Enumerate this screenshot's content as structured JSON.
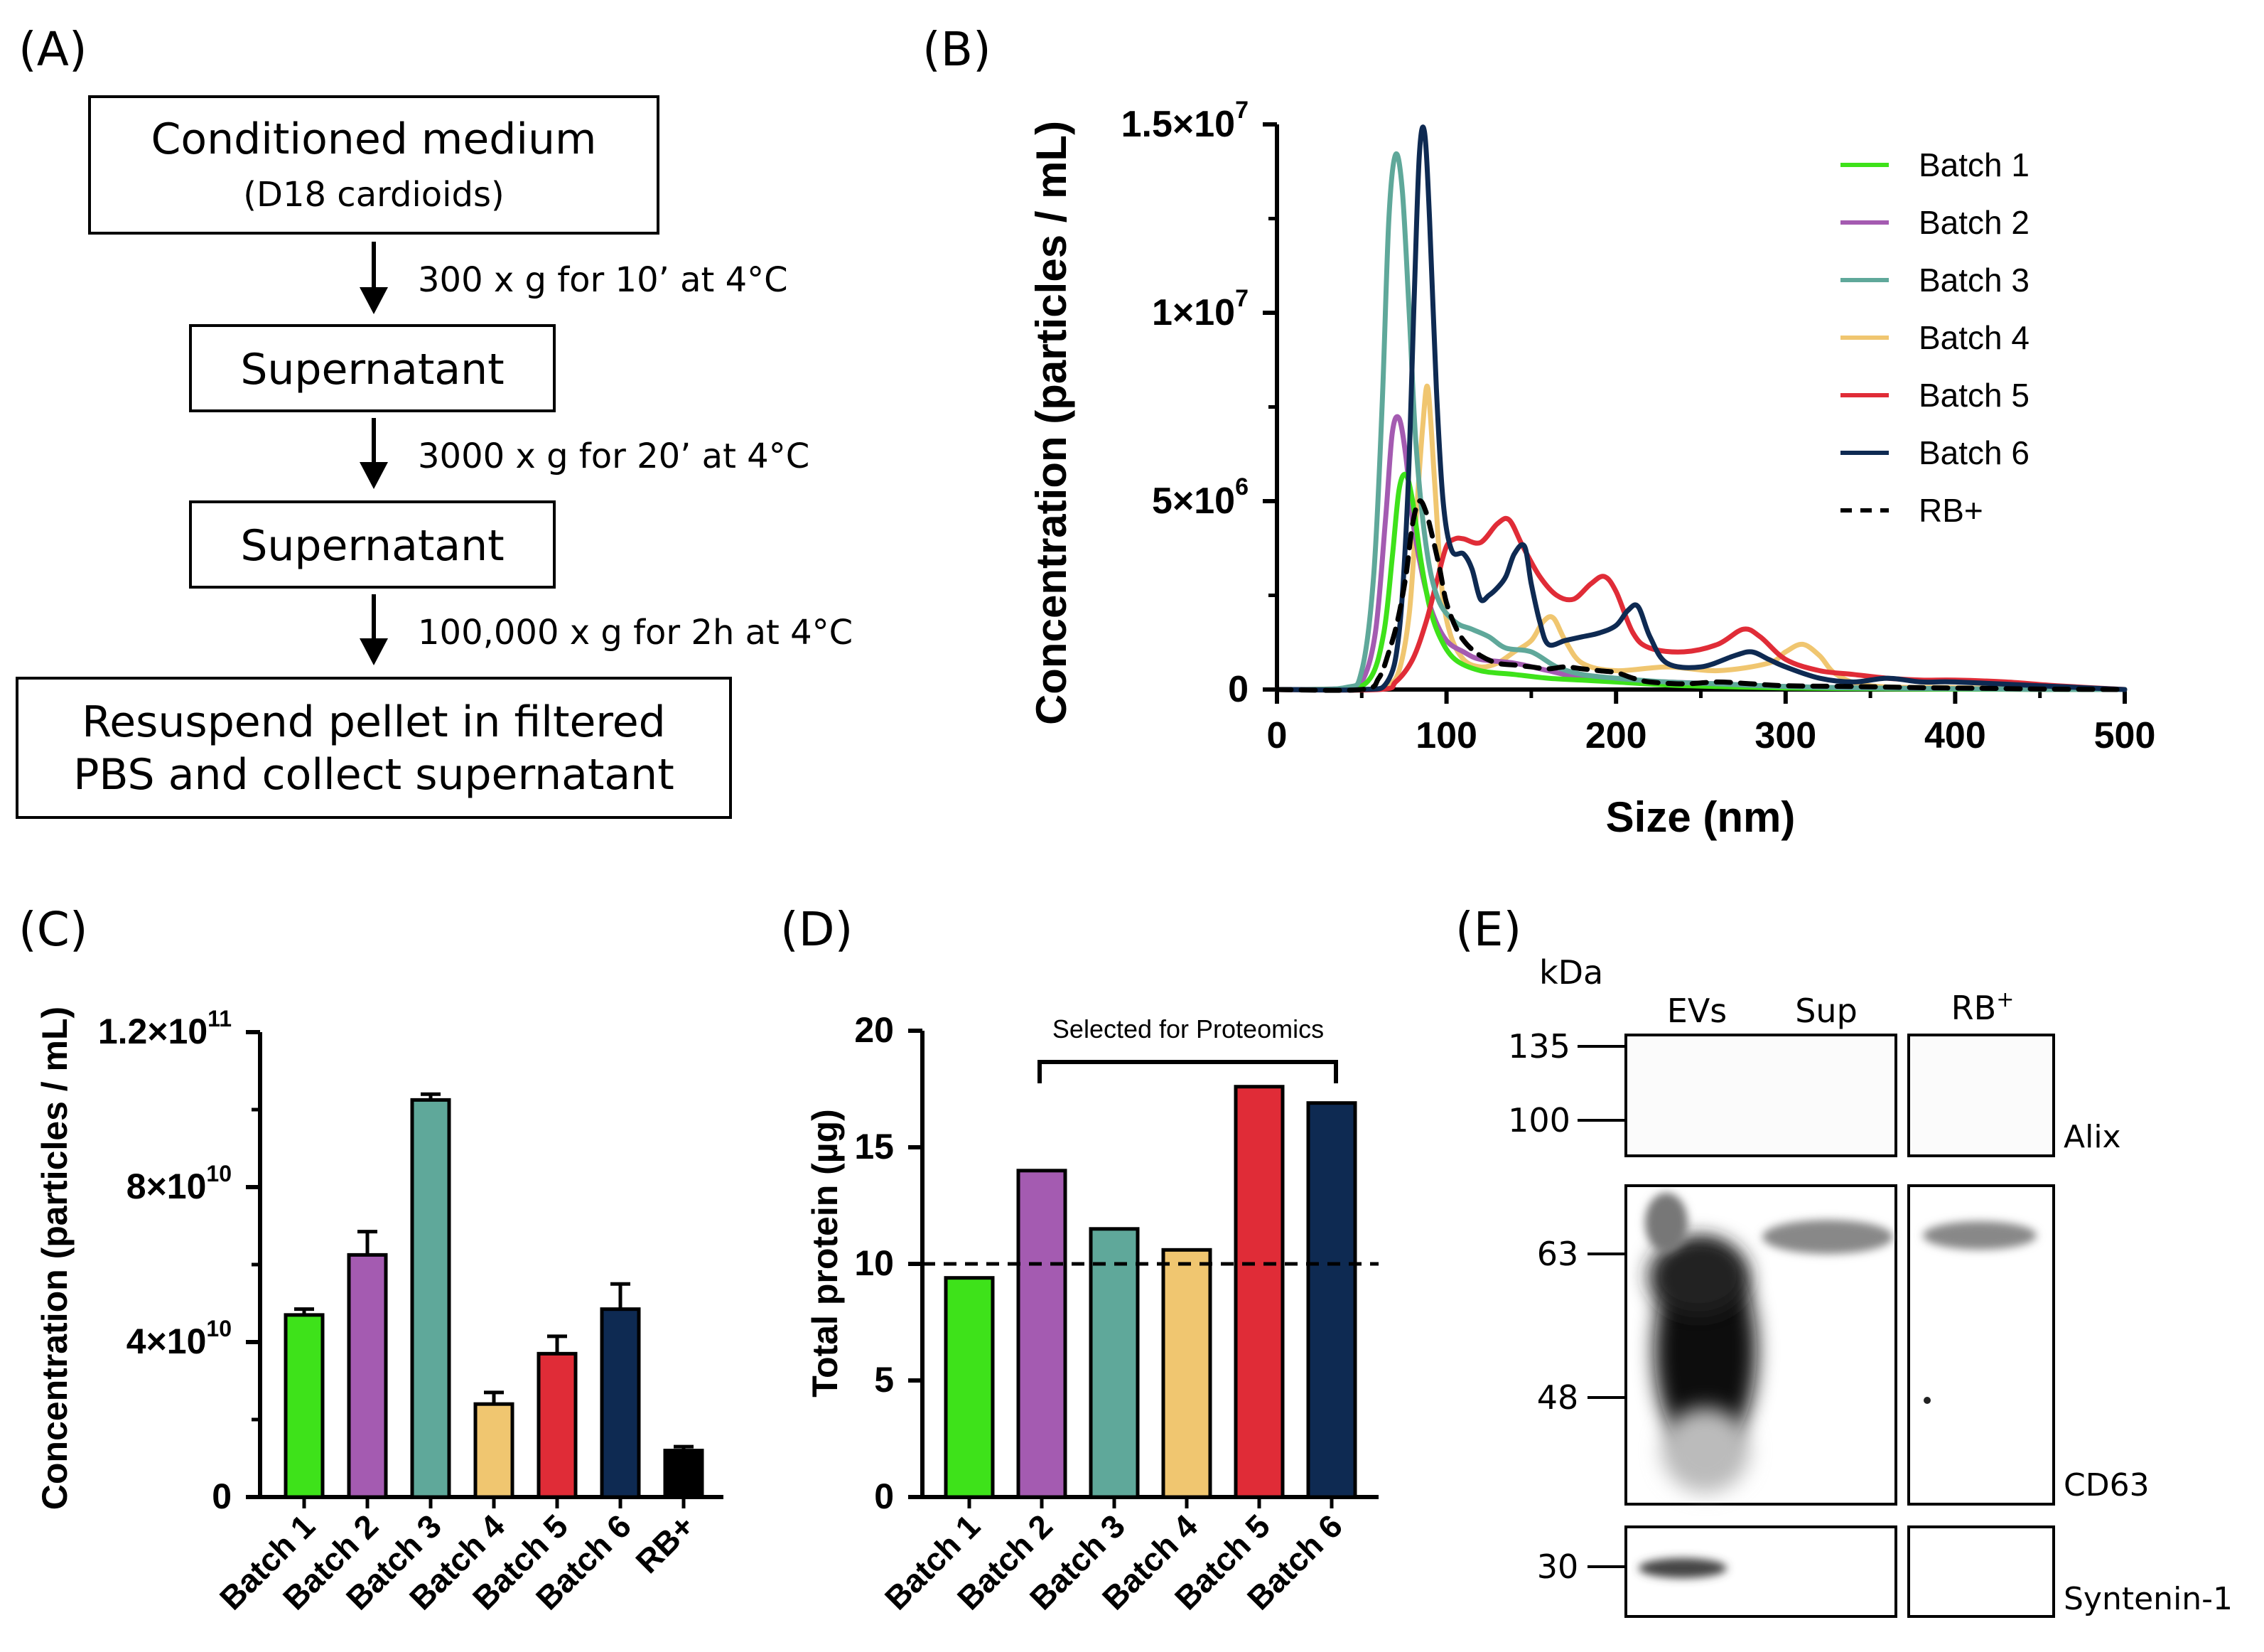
{
  "panels": {
    "a": "(A)",
    "b": "(B)",
    "c": "(C)",
    "d": "(D)",
    "e": "(E)"
  },
  "flow": {
    "box1_title": "Conditioned medium",
    "box1_sub": "(D18 cardioids)",
    "step1": "300 x g for 10’ at 4°C",
    "box2": "Supernatant",
    "step2": "3000 x g for 20’ at 4°C",
    "box3": "Supernatant",
    "step3": "100,000 x g for 2h at 4°C",
    "box4_line1": "Resuspend pellet in filtered",
    "box4_line2": "PBS and collect supernatant"
  },
  "colors": {
    "batch1": "#3ee21a",
    "batch2": "#a45bb1",
    "batch3": "#5fa89a",
    "batch4": "#f0c670",
    "batch5": "#e02c37",
    "batch6": "#0e2a52",
    "rb": "#000000"
  },
  "chart_data": [
    {
      "id": "B",
      "type": "line",
      "title": "",
      "xlabel": "Size (nm)",
      "ylabel": "Concentration (particles / mL)",
      "xlim": [
        0,
        500
      ],
      "ylim": [
        0,
        15000000
      ],
      "xticks": [
        "0",
        "100",
        "200",
        "300",
        "400",
        "500"
      ],
      "yticks": [
        "0",
        "5×10",
        "1×10",
        "1.5×10"
      ],
      "ytick_exponents": [
        "",
        "6",
        "7",
        "7"
      ],
      "series": [
        {
          "name": "Batch 1",
          "style": "solid",
          "color_key": "batch1",
          "x": [
            0,
            40,
            55,
            63,
            68,
            72,
            76,
            80,
            85,
            90,
            96,
            105,
            120,
            140,
            160,
            180,
            200,
            230,
            260,
            300,
            350,
            400,
            450,
            500
          ],
          "y": [
            0,
            30000,
            300000,
            1500000,
            3500000,
            5300000,
            5700000,
            5000000,
            3400000,
            2200000,
            1400000,
            800000,
            500000,
            400000,
            300000,
            250000,
            200000,
            120000,
            80000,
            40000,
            20000,
            10000,
            5000,
            0
          ]
        },
        {
          "name": "Batch 2",
          "style": "solid",
          "color_key": "batch2",
          "x": [
            0,
            40,
            50,
            58,
            64,
            68,
            72,
            76,
            80,
            86,
            92,
            100,
            110,
            120,
            140,
            160,
            180,
            200,
            230,
            260,
            300,
            350,
            400,
            450,
            500
          ],
          "y": [
            0,
            30000,
            200000,
            1500000,
            4500000,
            6800000,
            7200000,
            6200000,
            4500000,
            3000000,
            2000000,
            1300000,
            1000000,
            800000,
            700000,
            500000,
            300000,
            250000,
            200000,
            150000,
            80000,
            40000,
            20000,
            5000,
            0
          ]
        },
        {
          "name": "Batch 3",
          "style": "solid",
          "color_key": "batch3",
          "x": [
            0,
            40,
            50,
            57,
            62,
            66,
            70,
            74,
            78,
            82,
            88,
            95,
            105,
            115,
            125,
            135,
            150,
            165,
            180,
            200,
            230,
            260,
            300,
            350,
            400,
            450,
            500
          ],
          "y": [
            0,
            50000,
            500000,
            3000000,
            7500000,
            12500000,
            14200000,
            13200000,
            10000000,
            6500000,
            3800000,
            2400000,
            1800000,
            1600000,
            1400000,
            1100000,
            1000000,
            600000,
            400000,
            300000,
            200000,
            150000,
            80000,
            40000,
            20000,
            5000,
            0
          ]
        },
        {
          "name": "Batch 4",
          "style": "solid",
          "color_key": "batch4",
          "x": [
            0,
            55,
            65,
            72,
            78,
            82,
            86,
            89,
            93,
            97,
            102,
            110,
            120,
            130,
            140,
            150,
            157,
            163,
            170,
            180,
            200,
            230,
            260,
            290,
            300,
            310,
            320,
            330,
            350,
            400,
            450,
            500
          ],
          "y": [
            0,
            0,
            100000,
            500000,
            2000000,
            4500000,
            7000000,
            8000000,
            5500000,
            2800000,
            1500000,
            800000,
            600000,
            700000,
            1000000,
            1300000,
            1800000,
            1900000,
            1300000,
            700000,
            500000,
            600000,
            500000,
            700000,
            1000000,
            1200000,
            900000,
            400000,
            100000,
            50000,
            20000,
            0
          ]
        },
        {
          "name": "Batch 5",
          "style": "solid",
          "color_key": "batch5",
          "x": [
            0,
            60,
            70,
            80,
            88,
            95,
            100,
            105,
            110,
            120,
            130,
            137,
            145,
            155,
            165,
            175,
            185,
            193,
            200,
            210,
            220,
            240,
            260,
            275,
            285,
            300,
            320,
            340,
            360,
            380,
            400,
            430,
            460,
            500
          ],
          "y": [
            0,
            0,
            200000,
            800000,
            1800000,
            3000000,
            3800000,
            4000000,
            4000000,
            3900000,
            4400000,
            4500000,
            3800000,
            3000000,
            2500000,
            2400000,
            2800000,
            3000000,
            2600000,
            1500000,
            1100000,
            1000000,
            1200000,
            1600000,
            1400000,
            800000,
            500000,
            400000,
            300000,
            250000,
            250000,
            200000,
            100000,
            0
          ]
        },
        {
          "name": "Batch 6",
          "style": "solid",
          "color_key": "batch6",
          "x": [
            0,
            50,
            65,
            72,
            77,
            81,
            84,
            87,
            90,
            94,
            98,
            103,
            110,
            115,
            120,
            125,
            130,
            135,
            140,
            146,
            150,
            155,
            160,
            170,
            180,
            190,
            200,
            207,
            213,
            220,
            230,
            250,
            270,
            280,
            290,
            300,
            320,
            340,
            360,
            380,
            400,
            450,
            500
          ],
          "y": [
            0,
            0,
            200000,
            1500000,
            5000000,
            10500000,
            14200000,
            14800000,
            12500000,
            8000000,
            5000000,
            3700000,
            3600000,
            3200000,
            2400000,
            2500000,
            2700000,
            3000000,
            3600000,
            3800000,
            2800000,
            1800000,
            1200000,
            1300000,
            1400000,
            1500000,
            1700000,
            2100000,
            2200000,
            1400000,
            700000,
            600000,
            900000,
            1000000,
            800000,
            600000,
            300000,
            200000,
            300000,
            200000,
            200000,
            100000,
            0
          ]
        },
        {
          "name": "RB+",
          "style": "dashed",
          "color_key": "rb",
          "x": [
            0,
            50,
            60,
            66,
            71,
            76,
            80,
            84,
            88,
            92,
            96,
            100,
            106,
            112,
            120,
            130,
            140,
            150,
            160,
            170,
            180,
            190,
            200,
            210,
            220,
            240,
            260,
            280,
            300,
            340,
            380,
            420,
            460,
            500
          ],
          "y": [
            0,
            0,
            300000,
            1000000,
            1800000,
            3000000,
            4400000,
            5000000,
            4700000,
            4000000,
            3200000,
            2300000,
            1600000,
            1200000,
            900000,
            700000,
            650000,
            600000,
            550000,
            600000,
            550000,
            500000,
            450000,
            300000,
            200000,
            150000,
            200000,
            150000,
            100000,
            80000,
            50000,
            30000,
            10000,
            0
          ]
        }
      ]
    },
    {
      "id": "C",
      "type": "bar",
      "ylabel": "Concentration (particles / mL)",
      "xlabel": "",
      "ylim": [
        0,
        120000000000
      ],
      "yticks": [
        "0",
        "4×10",
        "8×10",
        "1.2×10"
      ],
      "ytick_exponents": [
        "",
        "10",
        "10",
        "11"
      ],
      "categories": [
        "Batch 1",
        "Batch 2",
        "Batch 3",
        "Batch 4",
        "Batch 5",
        "Batch 6",
        "RB+"
      ],
      "values": [
        47000000000,
        62500000000,
        102500000000,
        24000000000,
        37000000000,
        48500000000,
        12000000000
      ],
      "errors": [
        1500000000,
        6000000000,
        1500000000,
        3000000000,
        4500000000,
        6500000000,
        1000000000
      ],
      "color_keys": [
        "batch1",
        "batch2",
        "batch3",
        "batch4",
        "batch5",
        "batch6",
        "rb"
      ]
    },
    {
      "id": "D",
      "type": "bar",
      "ylabel": "Total protein (µg)",
      "xlabel": "",
      "ylim": [
        0,
        20
      ],
      "yticks": [
        "0",
        "5",
        "10",
        "15",
        "20"
      ],
      "categories": [
        "Batch 1",
        "Batch 2",
        "Batch 3",
        "Batch 4",
        "Batch 5",
        "Batch 6"
      ],
      "values": [
        9.4,
        14.0,
        11.5,
        10.6,
        17.6,
        16.9
      ],
      "color_keys": [
        "batch1",
        "batch2",
        "batch3",
        "batch4",
        "batch5",
        "batch6"
      ],
      "reference_line": 10,
      "annotation": "Selected for Proteomics"
    }
  ],
  "blot": {
    "unit": "kDa",
    "lanes": [
      "EVs",
      "Sup",
      "RB"
    ],
    "lane_superscript": "+",
    "markers": [
      "135",
      "100",
      "63",
      "48",
      "30"
    ],
    "proteins": [
      "Alix",
      "CD63",
      "Syntenin-1"
    ]
  }
}
